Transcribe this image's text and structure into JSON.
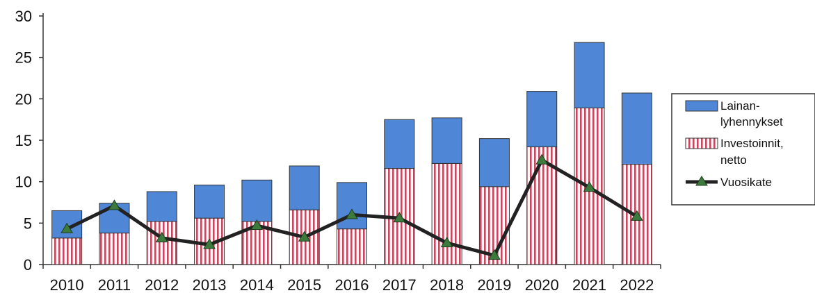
{
  "chart_data": {
    "type": "bar",
    "stacked": true,
    "categories": [
      "2010",
      "2011",
      "2012",
      "2013",
      "2014",
      "2015",
      "2016",
      "2017",
      "2018",
      "2019",
      "2020",
      "2021",
      "2022"
    ],
    "ylim": [
      0,
      30
    ],
    "yticks": [
      "0",
      "5",
      "10",
      "15",
      "20",
      "25",
      "30"
    ],
    "grid": false,
    "legend_position": "right",
    "series": [
      {
        "name": "Investoinnit, netto",
        "legend_lines": [
          "Investoinnit,",
          "netto"
        ],
        "type": "bar",
        "color": "#c8475f",
        "values": [
          3.2,
          3.8,
          5.2,
          5.6,
          5.2,
          6.6,
          4.3,
          11.6,
          12.2,
          9.4,
          14.2,
          18.9,
          12.1
        ]
      },
      {
        "name": "Lainan-lyhennykset",
        "legend_lines": [
          "Lainan-",
          "lyhennykset"
        ],
        "type": "bar",
        "color": "#4f86d6",
        "values": [
          3.3,
          3.6,
          3.6,
          4.0,
          5.0,
          5.3,
          5.6,
          5.9,
          5.5,
          5.8,
          6.7,
          7.9,
          8.6
        ]
      },
      {
        "name": "Vuosikate",
        "legend_lines": [
          "Vuosikate"
        ],
        "type": "line",
        "color": "#222222",
        "marker_color": "#3d7a3d",
        "values": [
          4.3,
          7.1,
          3.2,
          2.4,
          4.7,
          3.3,
          6.0,
          5.6,
          2.6,
          1.1,
          12.6,
          9.3,
          5.8
        ]
      }
    ]
  }
}
